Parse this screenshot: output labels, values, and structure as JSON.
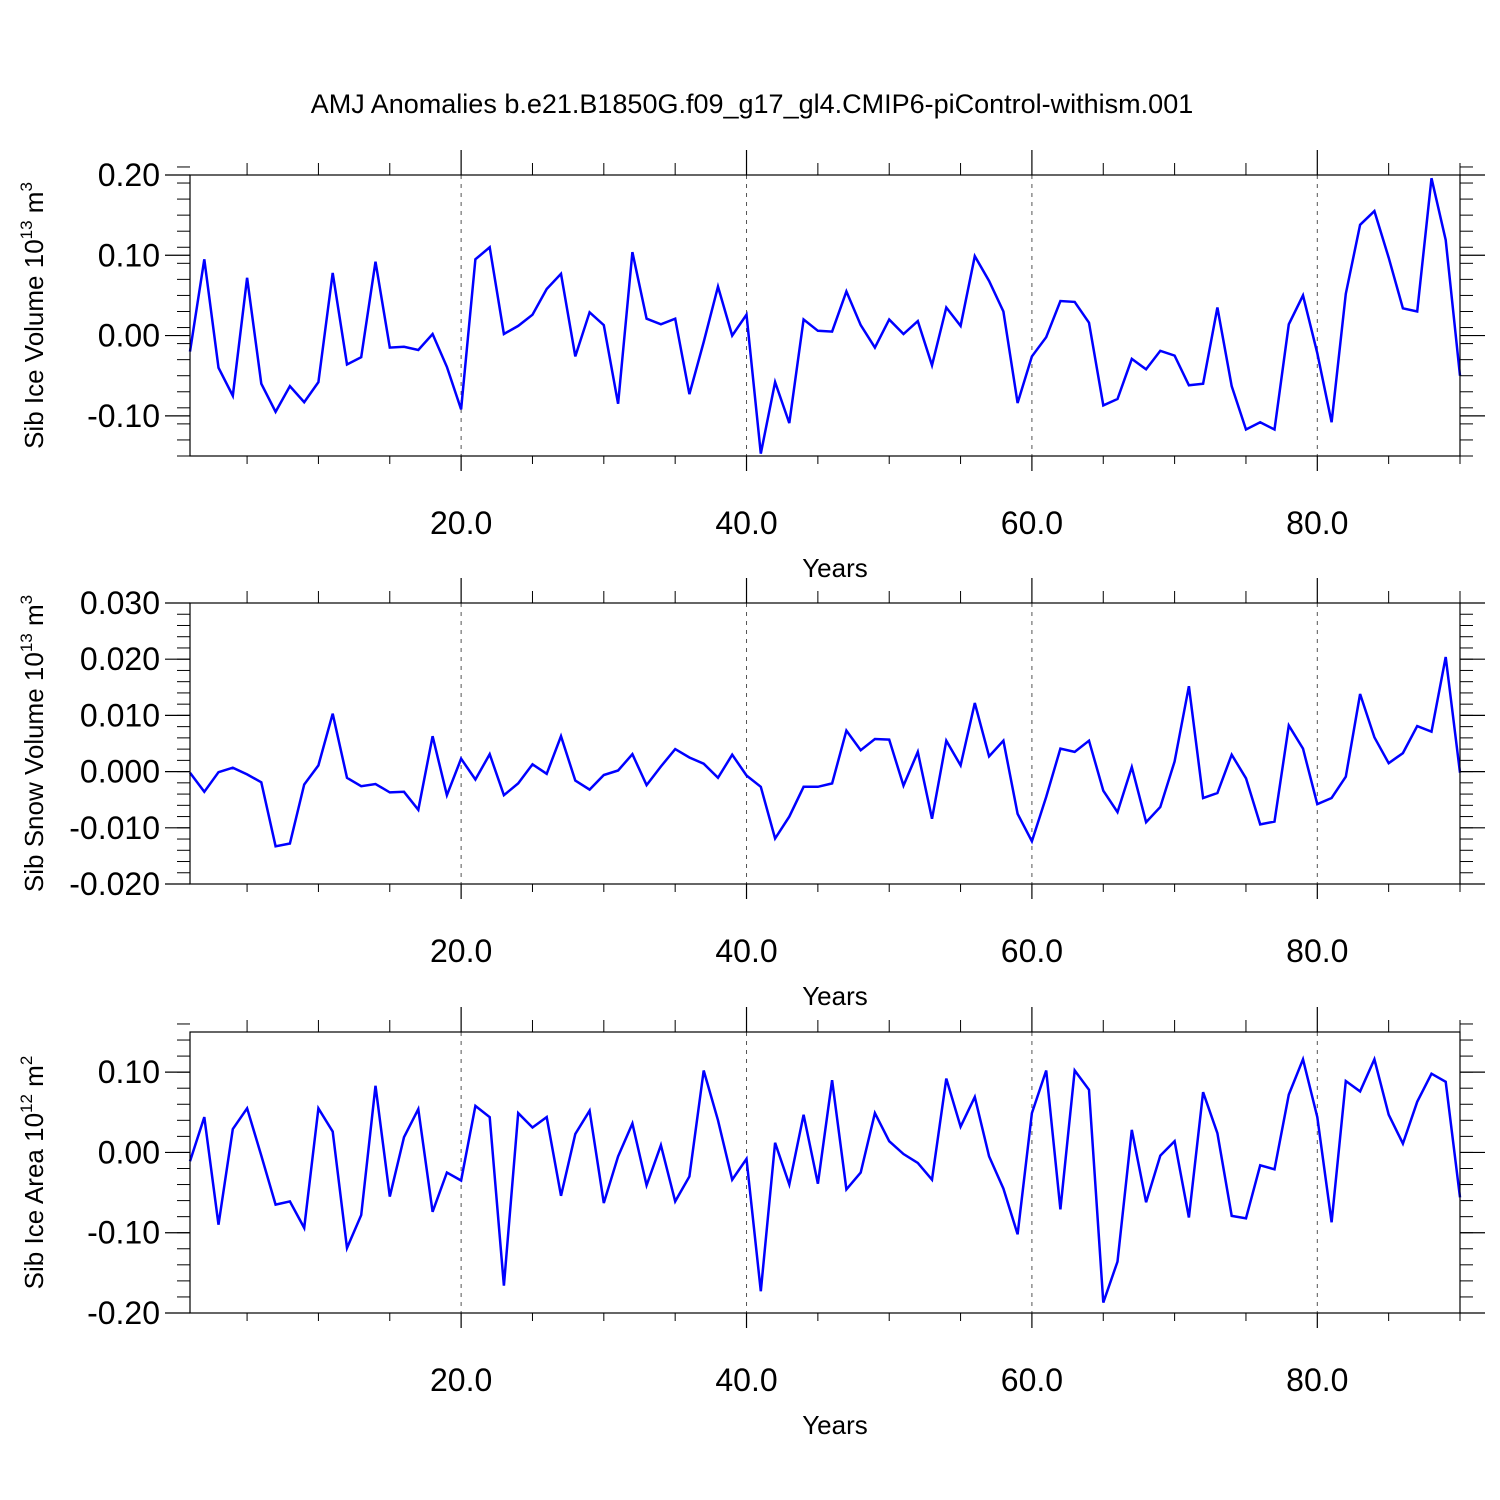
{
  "title": "AMJ Anomalies b.e21.B1850G.f09_g17_gl4.CMIP6-piControl-withism.001",
  "chart_data": [
    {
      "type": "line",
      "xlabel": "Years",
      "ylabel": "Sib Ice Volume 10",
      "ylabel_exp": "13",
      "ylabel_unit": " m",
      "ylabel_unit_exp": "3",
      "xlim": [
        1,
        90
      ],
      "ylim": [
        -0.15,
        0.2
      ],
      "xticks": [
        20,
        40,
        60,
        80
      ],
      "xtick_labels": [
        "20.0",
        "40.0",
        "60.0",
        "80.0"
      ],
      "yticks": [
        -0.1,
        0.0,
        0.1,
        0.2
      ],
      "ytick_labels": [
        "-0.10",
        "0.00",
        "0.10",
        "0.20"
      ],
      "line_color": "#0000ff",
      "grid": "dashed vertical lines at x ticks",
      "series": [
        {
          "x": [
            1,
            2,
            3,
            4,
            5,
            6,
            7,
            8,
            9,
            10,
            11,
            12,
            13,
            14,
            15,
            16,
            17,
            18,
            19,
            20,
            21,
            22,
            23,
            24,
            25,
            26,
            27,
            28,
            29,
            30,
            31,
            32,
            33,
            34,
            35,
            36,
            37,
            38,
            39,
            40,
            41,
            42,
            43,
            44,
            45,
            46,
            47,
            48,
            49,
            50,
            51,
            52,
            53,
            54,
            55,
            56,
            57,
            58,
            59,
            60,
            61,
            62,
            63,
            64,
            65,
            66,
            67,
            68,
            69,
            70,
            71,
            72,
            73,
            74,
            75,
            76,
            77,
            78,
            79,
            80,
            81,
            82,
            83,
            84,
            85,
            86,
            87,
            88,
            89,
            90
          ],
          "values": [
            -0.02,
            0.095,
            -0.04,
            -0.075,
            0.072,
            -0.06,
            -0.095,
            -0.063,
            -0.083,
            -0.058,
            0.078,
            -0.036,
            -0.027,
            0.092,
            -0.015,
            -0.014,
            -0.018,
            0.002,
            -0.039,
            -0.092,
            0.095,
            0.11,
            0.002,
            0.012,
            0.026,
            0.058,
            0.077,
            -0.026,
            0.029,
            0.013,
            -0.085,
            0.104,
            0.021,
            0.014,
            0.021,
            -0.073,
            -0.008,
            0.061,
            0.0,
            0.026,
            -0.147,
            -0.058,
            -0.109,
            0.02,
            0.006,
            0.005,
            0.055,
            0.013,
            -0.015,
            0.02,
            0.002,
            0.018,
            -0.037,
            0.035,
            0.012,
            0.099,
            0.068,
            0.03,
            -0.084,
            -0.026,
            -0.002,
            0.043,
            0.042,
            0.016,
            -0.087,
            -0.079,
            -0.029,
            -0.042,
            -0.019,
            -0.025,
            -0.062,
            -0.06,
            0.035,
            -0.063,
            -0.117,
            -0.108,
            -0.117,
            0.014,
            0.05,
            -0.022,
            -0.108,
            0.052,
            0.138,
            0.155,
            0.097,
            0.034,
            0.03,
            0.196,
            0.119,
            -0.05
          ]
        }
      ]
    },
    {
      "type": "line",
      "xlabel": "Years",
      "ylabel": "Sib Snow Volume 10",
      "ylabel_exp": "13",
      "ylabel_unit": " m",
      "ylabel_unit_exp": "3",
      "xlim": [
        1,
        90
      ],
      "ylim": [
        -0.02,
        0.03
      ],
      "xticks": [
        20,
        40,
        60,
        80
      ],
      "xtick_labels": [
        "20.0",
        "40.0",
        "60.0",
        "80.0"
      ],
      "yticks": [
        -0.02,
        -0.01,
        0.0,
        0.01,
        0.02,
        0.03
      ],
      "ytick_labels": [
        "-0.020",
        "-0.010",
        "0.000",
        "0.010",
        "0.020",
        "0.030"
      ],
      "line_color": "#0000ff",
      "grid": "dashed vertical lines at x ticks",
      "series": [
        {
          "x": [
            1,
            2,
            3,
            4,
            5,
            6,
            7,
            8,
            9,
            10,
            11,
            12,
            13,
            14,
            15,
            16,
            17,
            18,
            19,
            20,
            21,
            22,
            23,
            24,
            25,
            26,
            27,
            28,
            29,
            30,
            31,
            32,
            33,
            34,
            35,
            36,
            37,
            38,
            39,
            40,
            41,
            42,
            43,
            44,
            45,
            46,
            47,
            48,
            49,
            50,
            51,
            52,
            53,
            54,
            55,
            56,
            57,
            58,
            59,
            60,
            61,
            62,
            63,
            64,
            65,
            66,
            67,
            68,
            69,
            70,
            71,
            72,
            73,
            74,
            75,
            76,
            77,
            78,
            79,
            80,
            81,
            82,
            83,
            84,
            85,
            86,
            87,
            88,
            89,
            90
          ],
          "values": [
            -0.0002,
            -0.0036,
            -0.0001,
            0.0007,
            -0.0005,
            -0.0019,
            -0.0133,
            -0.0128,
            -0.0023,
            0.0011,
            0.0103,
            -0.0011,
            -0.0026,
            -0.0022,
            -0.0037,
            -0.0036,
            -0.0068,
            0.0063,
            -0.0042,
            0.0023,
            -0.0014,
            0.0031,
            -0.0042,
            -0.0021,
            0.0013,
            -0.0004,
            0.0063,
            -0.0016,
            -0.0032,
            -0.0006,
            0.0002,
            0.0031,
            -0.0024,
            0.0009,
            0.004,
            0.0025,
            0.0014,
            -0.0011,
            0.003,
            -0.0007,
            -0.0027,
            -0.0119,
            -0.008,
            -0.0027,
            -0.0027,
            -0.0021,
            0.0073,
            0.0038,
            0.0058,
            0.0057,
            -0.0025,
            0.0035,
            -0.0084,
            0.0055,
            0.0011,
            0.0122,
            0.0027,
            0.0055,
            -0.0075,
            -0.0124,
            -0.0045,
            0.0041,
            0.0035,
            0.0055,
            -0.0034,
            -0.0072,
            0.0008,
            -0.009,
            -0.0063,
            0.0018,
            0.0152,
            -0.0047,
            -0.0038,
            0.003,
            -0.0012,
            -0.0094,
            -0.0089,
            0.0082,
            0.0041,
            -0.0058,
            -0.0047,
            -0.0009,
            0.0138,
            0.0061,
            0.0015,
            0.0033,
            0.0081,
            0.0071,
            0.0204,
            -0.0002
          ]
        }
      ]
    },
    {
      "type": "line",
      "xlabel": "Years",
      "ylabel": "Sib Ice Area 10",
      "ylabel_exp": "12",
      "ylabel_unit": " m",
      "ylabel_unit_exp": "2",
      "xlim": [
        1,
        90
      ],
      "ylim": [
        -0.2,
        0.15
      ],
      "xticks": [
        20,
        40,
        60,
        80
      ],
      "xtick_labels": [
        "20.0",
        "40.0",
        "60.0",
        "80.0"
      ],
      "yticks": [
        -0.2,
        -0.1,
        0.0,
        0.1
      ],
      "ytick_labels": [
        "-0.20",
        "-0.10",
        "0.00",
        "0.10"
      ],
      "line_color": "#0000ff",
      "grid": "dashed vertical lines at x ticks",
      "series": [
        {
          "x": [
            1,
            2,
            3,
            4,
            5,
            6,
            7,
            8,
            9,
            10,
            11,
            12,
            13,
            14,
            15,
            16,
            17,
            18,
            19,
            20,
            21,
            22,
            23,
            24,
            25,
            26,
            27,
            28,
            29,
            30,
            31,
            32,
            33,
            34,
            35,
            36,
            37,
            38,
            39,
            40,
            41,
            42,
            43,
            44,
            45,
            46,
            47,
            48,
            49,
            50,
            51,
            52,
            53,
            54,
            55,
            56,
            57,
            58,
            59,
            60,
            61,
            62,
            63,
            64,
            65,
            66,
            67,
            68,
            69,
            70,
            71,
            72,
            73,
            74,
            75,
            76,
            77,
            78,
            79,
            80,
            81,
            82,
            83,
            84,
            85,
            86,
            87,
            88,
            89,
            90
          ],
          "values": [
            -0.011,
            0.044,
            -0.09,
            0.029,
            0.055,
            -0.004,
            -0.065,
            -0.061,
            -0.094,
            0.055,
            0.026,
            -0.119,
            -0.078,
            0.083,
            -0.055,
            0.019,
            0.054,
            -0.074,
            -0.025,
            -0.035,
            0.058,
            0.044,
            -0.166,
            0.049,
            0.031,
            0.044,
            -0.054,
            0.023,
            0.052,
            -0.063,
            -0.005,
            0.036,
            -0.041,
            0.009,
            -0.061,
            -0.03,
            0.102,
            0.04,
            -0.034,
            -0.008,
            -0.173,
            0.012,
            -0.04,
            0.047,
            -0.039,
            0.09,
            -0.046,
            -0.025,
            0.049,
            0.014,
            -0.002,
            -0.013,
            -0.034,
            0.092,
            0.032,
            0.069,
            -0.005,
            -0.045,
            -0.102,
            0.049,
            0.102,
            -0.071,
            0.102,
            0.078,
            -0.187,
            -0.136,
            0.028,
            -0.062,
            -0.004,
            0.014,
            -0.081,
            0.075,
            0.024,
            -0.079,
            -0.082,
            -0.016,
            -0.021,
            0.072,
            0.116,
            0.044,
            -0.087,
            0.089,
            0.076,
            0.116,
            0.047,
            0.011,
            0.063,
            0.098,
            0.088,
            -0.056
          ]
        }
      ]
    }
  ]
}
